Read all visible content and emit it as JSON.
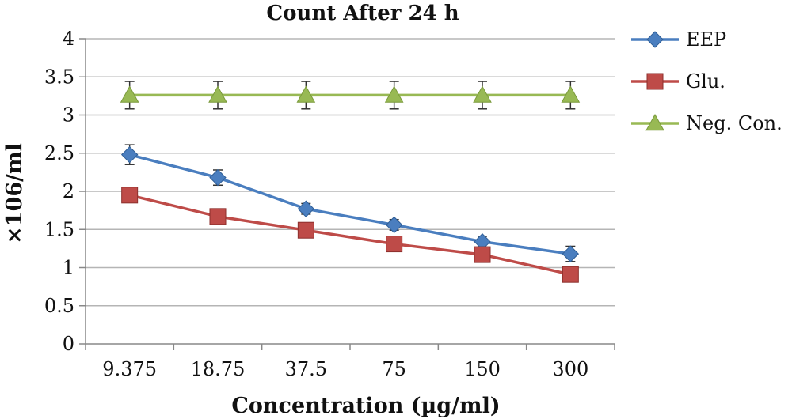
{
  "chart_data": {
    "type": "line",
    "title": "Count After 24 h",
    "xlabel": "Concentration (µg/ml)",
    "ylabel": "×106/ml",
    "categories": [
      "9.375",
      "18.75",
      "37.5",
      "75",
      "150",
      "300"
    ],
    "ylim": [
      0,
      4
    ],
    "yticks": [
      "0",
      "0.5",
      "1",
      "1.5",
      "2",
      "2.5",
      "3",
      "3.5",
      "4"
    ],
    "grid": true,
    "legend_position": "right",
    "series": [
      {
        "name": "EEP",
        "values": [
          2.48,
          2.18,
          1.77,
          1.56,
          1.34,
          1.18
        ],
        "error": [
          0.13,
          0.1,
          0.07,
          0.07,
          0.07,
          0.1
        ],
        "color": "#4a7ebf",
        "marker": "diamond"
      },
      {
        "name": "Glu.",
        "values": [
          1.95,
          1.67,
          1.49,
          1.31,
          1.17,
          0.91
        ],
        "error": [
          0.0,
          0.0,
          0.0,
          0.0,
          0.0,
          0.0
        ],
        "color": "#be4b48",
        "marker": "square"
      },
      {
        "name": "Neg. Con.",
        "values": [
          3.26,
          3.26,
          3.26,
          3.26,
          3.26,
          3.26
        ],
        "error": [
          0.18,
          0.18,
          0.18,
          0.18,
          0.18,
          0.18
        ],
        "color": "#98b954",
        "marker": "triangle"
      }
    ]
  }
}
